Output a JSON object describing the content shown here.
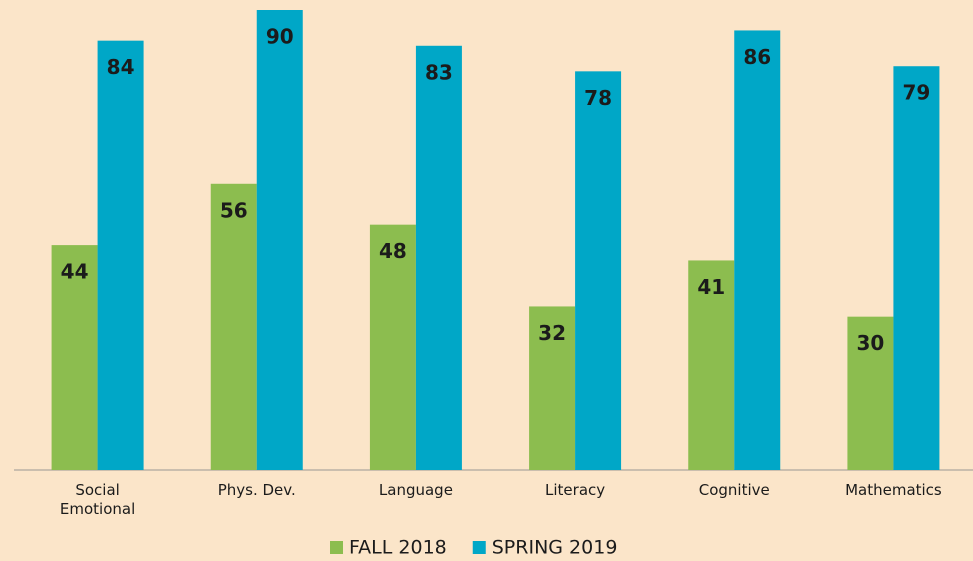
{
  "chart_data": {
    "type": "bar",
    "categories": [
      "Social\nEmotional",
      "Phys. Dev.",
      "Language",
      "Literacy",
      "Cognitive",
      "Mathematics"
    ],
    "series": [
      {
        "name": "FALL 2018",
        "color": "#8cbd4f",
        "values": [
          44,
          56,
          48,
          32,
          41,
          30
        ]
      },
      {
        "name": "SPRING 2019",
        "color": "#00a7c7",
        "values": [
          84,
          90,
          83,
          78,
          86,
          79
        ]
      }
    ],
    "ylim": [
      0,
      90
    ],
    "legend": "bottom"
  }
}
